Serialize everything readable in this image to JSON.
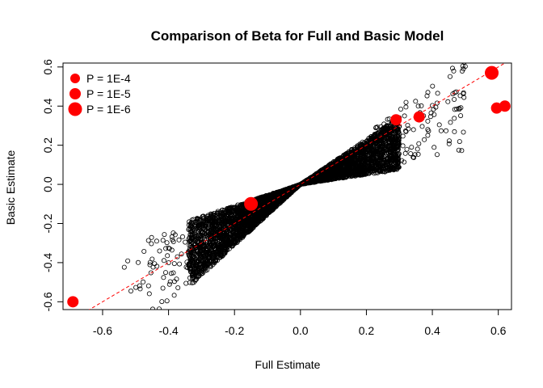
{
  "chart_data": {
    "type": "scatter",
    "title": "Comparison of Beta for Full and Basic Model",
    "xlabel": "Full Estimate",
    "ylabel": "Basic Estimate",
    "xlim": [
      -0.72,
      0.64
    ],
    "ylim": [
      -0.64,
      0.62
    ],
    "x_ticks": [
      {
        "value": -0.6,
        "label": "-0.6"
      },
      {
        "value": -0.4,
        "label": "-0.4"
      },
      {
        "value": -0.2,
        "label": "-0.2"
      },
      {
        "value": 0.0,
        "label": "0.0"
      },
      {
        "value": 0.2,
        "label": "0.2"
      },
      {
        "value": 0.4,
        "label": "0.4"
      },
      {
        "value": 0.6,
        "label": "0.6"
      }
    ],
    "y_ticks": [
      {
        "value": -0.6,
        "label": "-0.6"
      },
      {
        "value": -0.4,
        "label": "-0.4"
      },
      {
        "value": -0.2,
        "label": "-0.2"
      },
      {
        "value": 0.0,
        "label": "0.0"
      },
      {
        "value": 0.2,
        "label": "0.2"
      },
      {
        "value": 0.4,
        "label": "0.4"
      },
      {
        "value": 0.6,
        "label": "0.6"
      }
    ],
    "reference_line": {
      "slope": 1,
      "intercept": 0,
      "color": "#ff0000",
      "style": "dashed"
    },
    "background_cloud": {
      "description_color": "#000000",
      "clusters": [
        {
          "x_range": [
            -0.34,
            0.0
          ],
          "slope_range": [
            0.55,
            1.55
          ],
          "count": 2600
        },
        {
          "x_range": [
            0.0,
            0.3
          ],
          "slope_range": [
            0.25,
            1.15
          ],
          "count": 2000
        },
        {
          "x_range": [
            -0.55,
            -0.3
          ],
          "slope_range": [
            0.6,
            1.5
          ],
          "count": 90
        },
        {
          "x_range": [
            0.22,
            0.5
          ],
          "slope_range": [
            0.35,
            1.35
          ],
          "count": 110
        }
      ]
    },
    "legend": {
      "position": "top-left",
      "color": "#ff0000",
      "items": [
        {
          "label": "P = 1E-4",
          "size": 1
        },
        {
          "label": "P = 1E-5",
          "size": 2
        },
        {
          "label": "P = 1E-6",
          "size": 3
        }
      ]
    },
    "highlighted_points": [
      {
        "x": -0.69,
        "y": -0.6,
        "size": 2
      },
      {
        "x": -0.15,
        "y": -0.1,
        "size": 3
      },
      {
        "x": 0.29,
        "y": 0.33,
        "size": 2
      },
      {
        "x": 0.36,
        "y": 0.345,
        "size": 2
      },
      {
        "x": 0.58,
        "y": 0.57,
        "size": 3
      },
      {
        "x": 0.595,
        "y": 0.39,
        "size": 2
      },
      {
        "x": 0.62,
        "y": 0.4,
        "size": 2
      }
    ],
    "point_color": "#ff0000"
  }
}
